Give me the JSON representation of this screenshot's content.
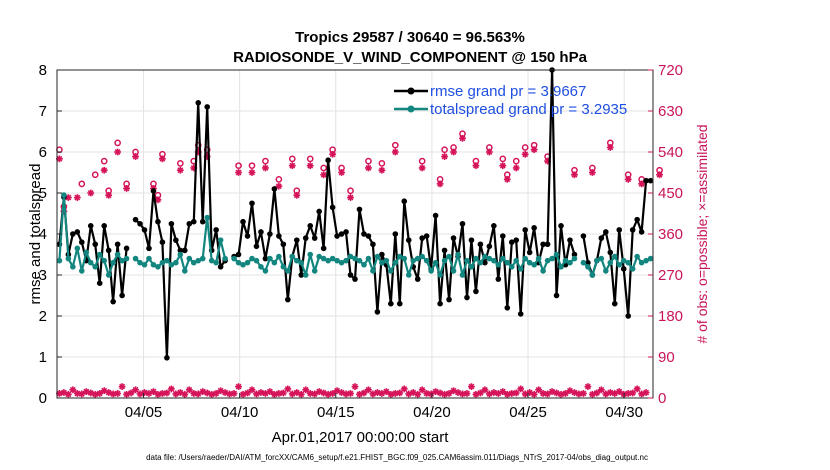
{
  "chart_data": {
    "type": "line",
    "title_line1": "Tropics 29587 / 30640 = 96.563%",
    "title_line2": "RADIOSONDE_V_WIND_COMPONENT @ 150 hPa",
    "xlabel": "Apr.01,2017 00:00:00 start",
    "ylabel": "rmse and totalspread",
    "ylabel_right": "# of obs: o=possible; ×=assimilated",
    "footer": "data file: /Users/raeder/DAI/ATM_forcXX/CAM6_setup/f.e21.FHIST_BGC.f09_025.CAM6assim.011/Diags_NTrS_2017-04/obs_diag_output.nc",
    "xlim": [
      0,
      31
    ],
    "ylim": [
      0,
      8
    ],
    "ylim_right": [
      0,
      720
    ],
    "xticks": [
      {
        "value": 4.5,
        "label": "04/05"
      },
      {
        "value": 9.5,
        "label": "04/10"
      },
      {
        "value": 14.5,
        "label": "04/15"
      },
      {
        "value": 19.5,
        "label": "04/20"
      },
      {
        "value": 24.5,
        "label": "04/25"
      },
      {
        "value": 29.5,
        "label": "04/30"
      }
    ],
    "yticks_left": [
      "0",
      "1",
      "2",
      "3",
      "4",
      "5",
      "6",
      "7",
      "8"
    ],
    "yticks_right": [
      "0",
      "90",
      "180",
      "270",
      "360",
      "450",
      "540",
      "630",
      "720"
    ],
    "colors": {
      "rmse": "#000000",
      "spread": "#138680",
      "obs": "#d5145a",
      "legend_text": "#1f4fe0"
    },
    "series": [
      {
        "name": "rmse grand pr = 3.9667",
        "values": [
          3.75,
          4.9,
          3.5,
          4.0,
          4.05,
          3.8,
          3.35,
          4.2,
          3.75,
          2.8,
          4.2,
          3.6,
          2.35,
          3.75,
          2.5,
          3.65,
          null,
          4.35,
          4.25,
          4.1,
          3.65,
          5.05,
          4.3,
          3.8,
          0.98,
          4.25,
          3.85,
          3.6,
          3.6,
          4.25,
          4.3,
          7.2,
          4.3,
          7.1,
          3.6,
          4.1,
          3.2,
          3.35,
          null,
          3.45,
          3.5,
          4.3,
          3.95,
          4.75,
          3.7,
          4.05,
          3.4,
          4.0,
          5.1,
          3.95,
          3.75,
          2.4,
          3.45,
          3.85,
          3.0,
          3.9,
          4.2,
          3.9,
          4.55,
          3.65,
          5.8,
          4.65,
          3.95,
          4.0,
          4.05,
          3.0,
          2.9,
          4.6,
          4.0,
          3.95,
          3.75,
          2.1,
          3.5,
          3.25,
          2.3,
          4.0,
          2.3,
          4.8,
          3.85,
          3.2,
          2.9,
          3.9,
          3.95,
          3.15,
          4.45,
          2.3,
          3.6,
          2.4,
          3.9,
          3.45,
          4.25,
          2.45,
          3.85,
          2.6,
          3.75,
          3.3,
          3.7,
          4.2,
          2.9,
          3.95,
          2.2,
          3.8,
          3.85,
          2.05,
          4.1,
          3.55,
          4.15,
          3.3,
          3.75,
          3.75,
          8.0,
          2.5,
          4.2,
          3.25,
          3.85,
          3.5,
          null,
          3.95,
          3.3,
          3.0,
          3.35,
          3.9,
          4.05,
          3.55,
          2.3,
          4.1,
          3.15,
          2.0,
          4.1,
          4.35,
          4.05,
          5.3,
          5.3
        ]
      },
      {
        "name": "totalspread grand pr = 3.2935",
        "values": [
          3.35,
          4.95,
          3.4,
          3.2,
          3.65,
          3.1,
          3.55,
          3.3,
          3.2,
          3.5,
          3.35,
          3.0,
          3.3,
          3.5,
          3.35,
          3.4,
          null,
          3.4,
          3.3,
          3.25,
          3.4,
          3.25,
          3.2,
          3.3,
          3.35,
          3.25,
          3.3,
          3.5,
          3.1,
          3.4,
          3.3,
          3.35,
          3.4,
          4.4,
          3.35,
          3.3,
          3.85,
          3.4,
          null,
          3.4,
          3.3,
          3.25,
          3.3,
          3.4,
          3.35,
          3.2,
          3.1,
          3.4,
          3.3,
          3.45,
          3.2,
          3.1,
          3.45,
          3.35,
          3.3,
          3.0,
          3.5,
          3.1,
          3.45,
          3.4,
          3.35,
          3.4,
          3.35,
          3.3,
          3.35,
          3.45,
          3.4,
          3.35,
          3.25,
          3.4,
          3.1,
          3.45,
          3.3,
          3.35,
          3.1,
          3.3,
          3.45,
          3.4,
          3.0,
          3.35,
          3.4,
          3.45,
          3.35,
          3.1,
          3.3,
          3.0,
          3.35,
          3.45,
          3.1,
          3.5,
          3.0,
          3.35,
          3.2,
          3.4,
          3.3,
          3.45,
          3.4,
          3.35,
          3.25,
          3.4,
          3.3,
          3.2,
          3.35,
          3.15,
          3.4,
          3.3,
          3.25,
          3.4,
          3.1,
          3.35,
          3.4,
          3.5,
          3.2,
          3.35,
          3.3,
          3.4,
          null,
          3.3,
          3.2,
          3.0,
          3.35,
          3.4,
          3.1,
          3.3,
          3.45,
          3.25,
          3.35,
          3.3,
          3.15,
          3.45,
          3.3,
          3.35,
          3.4
        ]
      }
    ],
    "obs_possible": [
      545,
      420,
      null,
      null,
      null,
      470,
      null,
      null,
      490,
      null,
      520,
      455,
      null,
      560,
      null,
      470,
      null,
      540,
      null,
      null,
      null,
      470,
      445,
      535,
      null,
      null,
      null,
      515,
      null,
      null,
      520,
      555,
      null,
      545,
      null,
      null,
      null,
      null,
      null,
      null,
      510,
      null,
      null,
      510,
      null,
      null,
      520,
      null,
      null,
      480,
      null,
      null,
      525,
      455,
      null,
      null,
      525,
      null,
      null,
      505,
      null,
      545,
      null,
      505,
      null,
      455,
      null,
      null,
      null,
      520,
      null,
      null,
      515,
      null,
      null,
      555,
      null,
      null,
      null,
      null,
      null,
      520,
      null,
      null,
      null,
      480,
      545,
      null,
      550,
      null,
      580,
      null,
      null,
      520,
      null,
      null,
      550,
      null,
      null,
      525,
      490,
      null,
      520,
      null,
      550,
      null,
      555,
      null,
      null,
      530,
      null,
      null,
      null,
      null,
      null,
      500,
      null,
      null,
      null,
      505,
      null,
      null,
      null,
      560,
      null,
      null,
      null,
      490,
      null,
      null,
      480,
      null,
      null,
      null,
      500
    ],
    "obs_assimilated": [
      525,
      410,
      440,
      null,
      440,
      null,
      null,
      450,
      null,
      null,
      500,
      445,
      null,
      540,
      null,
      460,
      null,
      530,
      null,
      null,
      null,
      460,
      435,
      525,
      null,
      null,
      null,
      500,
      null,
      null,
      505,
      540,
      null,
      530,
      null,
      null,
      null,
      null,
      null,
      null,
      495,
      null,
      null,
      495,
      null,
      null,
      505,
      null,
      null,
      465,
      null,
      null,
      510,
      445,
      null,
      null,
      510,
      null,
      null,
      490,
      null,
      535,
      null,
      495,
      null,
      440,
      null,
      null,
      null,
      505,
      null,
      null,
      500,
      null,
      null,
      540,
      null,
      null,
      null,
      null,
      null,
      505,
      null,
      null,
      null,
      470,
      530,
      null,
      540,
      null,
      570,
      null,
      null,
      510,
      null,
      null,
      540,
      null,
      null,
      510,
      480,
      null,
      505,
      null,
      535,
      null,
      545,
      null,
      null,
      520,
      null,
      null,
      null,
      null,
      null,
      490,
      null,
      null,
      null,
      495,
      null,
      null,
      null,
      550,
      null,
      null,
      null,
      480,
      null,
      null,
      470,
      null,
      null,
      null,
      490
    ],
    "obs_zero_possible": [
      10,
      12,
      8,
      18,
      10,
      9,
      14,
      11,
      8,
      10,
      16,
      12,
      9,
      10,
      25,
      8,
      11,
      18,
      9,
      12,
      10,
      14,
      8,
      10,
      11,
      20,
      9,
      12,
      8,
      18,
      10,
      9,
      14,
      11,
      8,
      10,
      16,
      12,
      9,
      10,
      25,
      8,
      11,
      18,
      9,
      12,
      10,
      14,
      8,
      10,
      11,
      20,
      9,
      12,
      8,
      18,
      10,
      9,
      14,
      11,
      8,
      10,
      16,
      12,
      9,
      10,
      25,
      8,
      11,
      18,
      9,
      12,
      10,
      14,
      8,
      10,
      11,
      20,
      9,
      12,
      8,
      18,
      10,
      9,
      14,
      11,
      8,
      10,
      16,
      12,
      9,
      10,
      25,
      8,
      11,
      18,
      9,
      12,
      10,
      14,
      8,
      10,
      11,
      20,
      9,
      12,
      8,
      18,
      10,
      9,
      14,
      11,
      8,
      10,
      16,
      12,
      9,
      10,
      25,
      8,
      11,
      18,
      9,
      12,
      10,
      14,
      8,
      10,
      11,
      20,
      9,
      12
    ]
  }
}
